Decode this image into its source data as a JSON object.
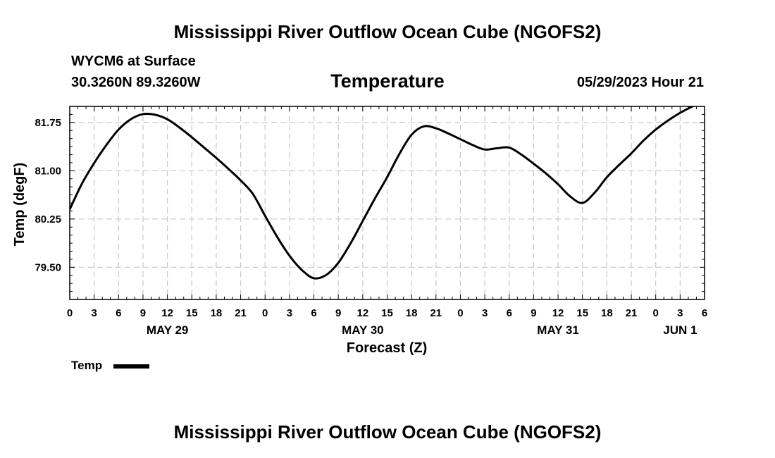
{
  "header": {
    "top_title": "Mississippi River Outflow Ocean Cube (NGOFS2)",
    "station": "WYCM6 at Surface",
    "coordinates": "30.3260N  89.3260W",
    "chart_title": "Temperature",
    "datetime": "05/29/2023 Hour 21",
    "bottom_title": "Mississippi River Outflow Ocean Cube (NGOFS2)"
  },
  "chart_data": {
    "type": "line",
    "title": "Temperature",
    "xlabel": "Forecast (Z)",
    "ylabel": "Temp (degF)",
    "xlim": [
      0,
      78
    ],
    "ylim": [
      79.0,
      82.0
    ],
    "x_tick_labels": [
      "0",
      "3",
      "6",
      "9",
      "12",
      "15",
      "18",
      "21",
      "0",
      "3",
      "6",
      "9",
      "12",
      "15",
      "18",
      "21",
      "0",
      "3",
      "6",
      "9",
      "12",
      "15",
      "18",
      "21",
      "0",
      "3",
      "6"
    ],
    "x_tick_step_hours": 3,
    "date_labels": [
      {
        "label": "MAY 29",
        "hour": 12
      },
      {
        "label": "MAY 30",
        "hour": 36
      },
      {
        "label": "MAY 31",
        "hour": 60
      },
      {
        "label": "JUN 1",
        "hour": 75
      }
    ],
    "y_ticks": [
      79.5,
      80.25,
      81.0,
      81.75
    ],
    "y_tick_labels": [
      "79.50",
      "80.25",
      "81.00",
      "81.75"
    ],
    "grid": true,
    "series": [
      {
        "name": "Temp",
        "x": [
          0,
          1.5,
          3,
          4.5,
          6,
          7.5,
          9,
          10.5,
          12,
          13.5,
          15,
          16.5,
          18,
          19.5,
          21,
          22.5,
          24,
          25.5,
          27,
          28.5,
          30,
          31.5,
          33,
          34.5,
          36,
          37.5,
          39,
          40.5,
          42,
          43.5,
          45,
          46.5,
          48,
          49.5,
          51,
          52.5,
          54,
          55.5,
          57,
          58.5,
          60,
          61.5,
          63,
          64.5,
          66,
          67.5,
          69,
          70.5,
          72,
          73.5,
          75,
          76.5,
          78
        ],
        "values": [
          80.4,
          80.8,
          81.12,
          81.4,
          81.64,
          81.8,
          81.88,
          81.87,
          81.8,
          81.67,
          81.52,
          81.36,
          81.2,
          81.03,
          80.85,
          80.64,
          80.3,
          79.97,
          79.68,
          79.46,
          79.33,
          79.38,
          79.57,
          79.87,
          80.22,
          80.57,
          80.9,
          81.26,
          81.56,
          81.69,
          81.66,
          81.58,
          81.49,
          81.4,
          81.33,
          81.35,
          81.36,
          81.25,
          81.11,
          80.96,
          80.79,
          80.6,
          80.5,
          80.66,
          80.9,
          81.09,
          81.27,
          81.47,
          81.64,
          81.78,
          81.9,
          82.0,
          82.1
        ]
      }
    ],
    "legend": [
      {
        "label": "Temp",
        "color": "#000000"
      }
    ],
    "legend_position": "bottom-left"
  }
}
